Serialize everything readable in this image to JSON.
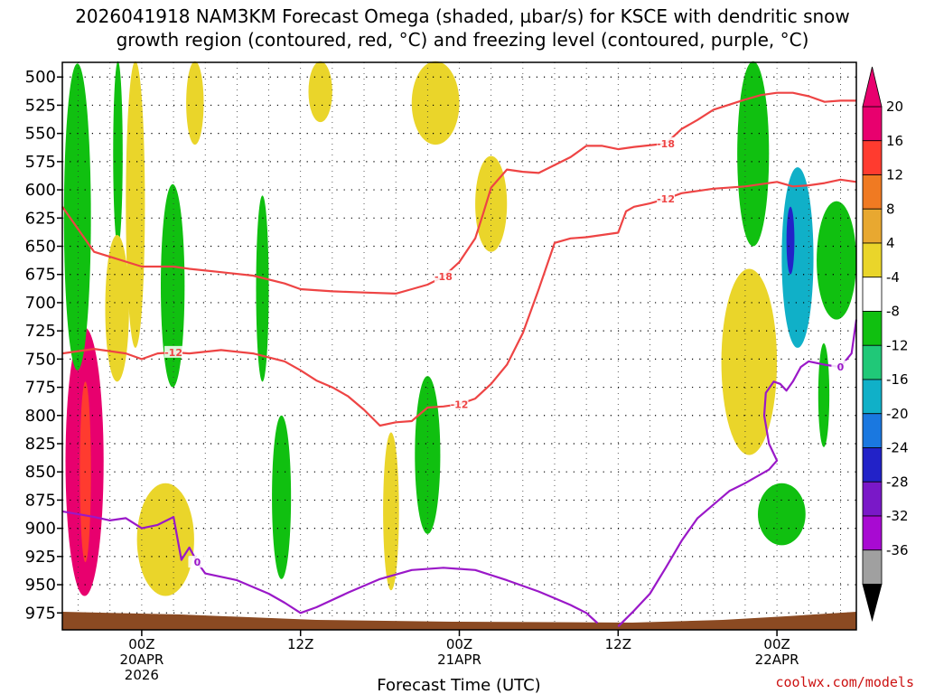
{
  "chart_data": {
    "type": "heatmap",
    "title_line1": "2026041918 NAM3KM Forecast Omega (shaded, µbar/s) for KSCE with dendritic snow",
    "title_line2": "growth region (contoured, red, °C) and freezing level (contoured, purple, °C)",
    "xlabel": "Forecast Time (UTC)",
    "ylabel": "",
    "credit": "coolwx.com/models",
    "x_range_hours": [
      -5,
      45
    ],
    "y_range_hpa": [
      487,
      990
    ],
    "y_ticks": [
      500,
      525,
      550,
      575,
      600,
      625,
      650,
      675,
      700,
      725,
      750,
      775,
      800,
      825,
      850,
      875,
      900,
      925,
      950,
      975
    ],
    "x_ticks": [
      {
        "hour": 0,
        "lines": [
          "00Z",
          "20APR",
          "2026"
        ]
      },
      {
        "hour": 10,
        "lines": [
          "12Z"
        ]
      },
      {
        "hour": 20,
        "lines": [
          "00Z",
          "21APR"
        ]
      },
      {
        "hour": 30,
        "lines": [
          "12Z"
        ]
      },
      {
        "hour": 40,
        "lines": [
          "00Z",
          "22APR"
        ]
      }
    ],
    "colorbar": {
      "labels": [
        "20",
        "16",
        "12",
        "8",
        "4",
        "-4",
        "-8",
        "-12",
        "-16",
        "-20",
        "-24",
        "-28",
        "-32",
        "-36"
      ],
      "colors": [
        "#e8006e",
        "#ff3b2f",
        "#f07a22",
        "#e8a830",
        "#ead52a",
        "#ffffff",
        "#10c010",
        "#20c878",
        "#10b0c8",
        "#1a78e0",
        "#2222c8",
        "#7a18c8",
        "#a80ad2",
        "#a0a0a0"
      ]
    },
    "series": [
      {
        "name": "-18 °C isotherm",
        "color": "#ee4444",
        "label": "-18",
        "points": [
          [
            -5,
            615
          ],
          [
            -3,
            655
          ],
          [
            0,
            668
          ],
          [
            2,
            668
          ],
          [
            3,
            670
          ],
          [
            5,
            673
          ],
          [
            7,
            676
          ],
          [
            9,
            683
          ],
          [
            10,
            688
          ],
          [
            12,
            690
          ],
          [
            14,
            691
          ],
          [
            16,
            692
          ],
          [
            17,
            688
          ],
          [
            18,
            684
          ],
          [
            19,
            677
          ],
          [
            20,
            664
          ],
          [
            21,
            643
          ],
          [
            21.5,
            621
          ],
          [
            22,
            598
          ],
          [
            23,
            582
          ],
          [
            24,
            584
          ],
          [
            25,
            585
          ],
          [
            26,
            578
          ],
          [
            27,
            571
          ],
          [
            28,
            561
          ],
          [
            29,
            561
          ],
          [
            30,
            564
          ],
          [
            31,
            562
          ],
          [
            33,
            559
          ],
          [
            34,
            546
          ],
          [
            35,
            538
          ],
          [
            36,
            529
          ],
          [
            38,
            520
          ],
          [
            39,
            516
          ],
          [
            40,
            514
          ],
          [
            41,
            514
          ],
          [
            42,
            517
          ],
          [
            43,
            522
          ],
          [
            44,
            521
          ],
          [
            45,
            521
          ]
        ]
      },
      {
        "name": "-12 °C isotherm",
        "color": "#ee4444",
        "label": "-12",
        "points": [
          [
            -5,
            745
          ],
          [
            -3,
            741
          ],
          [
            -1,
            745
          ],
          [
            0,
            750
          ],
          [
            1,
            745
          ],
          [
            2,
            744
          ],
          [
            3,
            745
          ],
          [
            5,
            742
          ],
          [
            7,
            745
          ],
          [
            9,
            752
          ],
          [
            10,
            760
          ],
          [
            11,
            769
          ],
          [
            12,
            775
          ],
          [
            13,
            783
          ],
          [
            14,
            795
          ],
          [
            15,
            809
          ],
          [
            16,
            806
          ],
          [
            17,
            805
          ],
          [
            18,
            793
          ],
          [
            19,
            792
          ],
          [
            20,
            790
          ],
          [
            21,
            785
          ],
          [
            22,
            772
          ],
          [
            23,
            755
          ],
          [
            24,
            727
          ],
          [
            25,
            688
          ],
          [
            26,
            647
          ],
          [
            27,
            643
          ],
          [
            28,
            642
          ],
          [
            29,
            640
          ],
          [
            30,
            638
          ],
          [
            30.5,
            619
          ],
          [
            31,
            615
          ],
          [
            32,
            612
          ],
          [
            33,
            608
          ],
          [
            34,
            603
          ],
          [
            35,
            601
          ],
          [
            36,
            599
          ],
          [
            38,
            597
          ],
          [
            40,
            593
          ],
          [
            41,
            597
          ],
          [
            42,
            596
          ],
          [
            43,
            594
          ],
          [
            44,
            591
          ],
          [
            45,
            593
          ]
        ]
      },
      {
        "name": "0 °C freezing level",
        "color": "#9a18c8",
        "label": "0",
        "points": [
          [
            -5,
            885
          ],
          [
            -3,
            890
          ],
          [
            -2,
            893
          ],
          [
            -1,
            891
          ],
          [
            0,
            900
          ],
          [
            1,
            897
          ],
          [
            2,
            890
          ],
          [
            2.5,
            928
          ],
          [
            3,
            917
          ],
          [
            3.5,
            930
          ],
          [
            4,
            940
          ],
          [
            6,
            946
          ],
          [
            8,
            958
          ],
          [
            9,
            966
          ],
          [
            10,
            975
          ],
          [
            11,
            970
          ],
          [
            13,
            957
          ],
          [
            15,
            945
          ],
          [
            17,
            937
          ],
          [
            19,
            935
          ],
          [
            21,
            937
          ],
          [
            23,
            946
          ],
          [
            25,
            956
          ],
          [
            26,
            962
          ],
          [
            27,
            968
          ],
          [
            28,
            975
          ],
          [
            28.7,
            984
          ]
        ]
      },
      {
        "name": "0 °C freezing level (second)",
        "color": "#9a18c8",
        "label": "0",
        "points": [
          [
            30,
            987
          ],
          [
            31,
            973
          ],
          [
            32,
            958
          ],
          [
            33,
            935
          ],
          [
            34,
            911
          ],
          [
            35,
            891
          ],
          [
            36,
            879
          ],
          [
            37,
            867
          ],
          [
            38,
            860
          ],
          [
            39,
            852
          ],
          [
            39.5,
            848
          ],
          [
            40,
            840
          ],
          [
            39.5,
            825
          ],
          [
            39.2,
            800
          ],
          [
            39.3,
            780
          ],
          [
            39.8,
            770
          ],
          [
            40.2,
            772
          ],
          [
            40.6,
            778
          ],
          [
            41,
            770
          ],
          [
            41.5,
            757
          ],
          [
            42,
            752
          ],
          [
            43,
            755
          ],
          [
            44,
            757
          ],
          [
            44.7,
            745
          ],
          [
            45,
            715
          ]
        ]
      }
    ],
    "shaded_regions": [
      {
        "omega": 20,
        "hours": [
          -4.8,
          -2.4
        ],
        "p": [
          722,
          960
        ]
      },
      {
        "omega": 16,
        "hours": [
          -3.9,
          -3.2
        ],
        "p": [
          770,
          930
        ]
      },
      {
        "omega": -8,
        "hours": [
          -4.9,
          -3.2
        ],
        "p": [
          488,
          760
        ]
      },
      {
        "omega": -8,
        "hours": [
          -1.8,
          -1.2
        ],
        "p": [
          486,
          650
        ]
      },
      {
        "omega": 4,
        "hours": [
          -1.0,
          0.2
        ],
        "p": [
          486,
          740
        ]
      },
      {
        "omega": 4,
        "hours": [
          -2.3,
          -0.8
        ],
        "p": [
          640,
          770
        ]
      },
      {
        "omega": 4,
        "hours": [
          2.8,
          3.9
        ],
        "p": [
          486,
          560
        ]
      },
      {
        "omega": -8,
        "hours": [
          1.2,
          2.7
        ],
        "p": [
          595,
          775
        ]
      },
      {
        "omega": 4,
        "hours": [
          -0.3,
          3.3
        ],
        "p": [
          860,
          960
        ]
      },
      {
        "omega": -8,
        "hours": [
          7.2,
          8.0
        ],
        "p": [
          605,
          770
        ]
      },
      {
        "omega": -8,
        "hours": [
          8.2,
          9.4
        ],
        "p": [
          800,
          945
        ]
      },
      {
        "omega": 4,
        "hours": [
          15.2,
          16.2
        ],
        "p": [
          815,
          955
        ]
      },
      {
        "omega": -8,
        "hours": [
          17.2,
          18.8
        ],
        "p": [
          765,
          905
        ]
      },
      {
        "omega": 4,
        "hours": [
          10.5,
          12.0
        ],
        "p": [
          486,
          540
        ]
      },
      {
        "omega": 4,
        "hours": [
          17.0,
          20.0
        ],
        "p": [
          486,
          560
        ]
      },
      {
        "omega": 4,
        "hours": [
          21.0,
          23.0
        ],
        "p": [
          570,
          655
        ]
      },
      {
        "omega": 4,
        "hours": [
          36.5,
          40.0
        ],
        "p": [
          670,
          835
        ]
      },
      {
        "omega": -8,
        "hours": [
          37.5,
          39.5
        ],
        "p": [
          486,
          650
        ]
      },
      {
        "omega": -8,
        "hours": [
          42.6,
          43.3
        ],
        "p": [
          736,
          828
        ]
      },
      {
        "omega": -16,
        "hours": [
          40.3,
          42.3
        ],
        "p": [
          580,
          740
        ]
      },
      {
        "omega": -24,
        "hours": [
          40.6,
          41.1
        ],
        "p": [
          615,
          675
        ]
      },
      {
        "omega": -8,
        "hours": [
          42.5,
          45.0
        ],
        "p": [
          610,
          715
        ]
      },
      {
        "omega": -8,
        "hours": [
          38.8,
          41.8
        ],
        "p": [
          860,
          915
        ]
      }
    ]
  }
}
